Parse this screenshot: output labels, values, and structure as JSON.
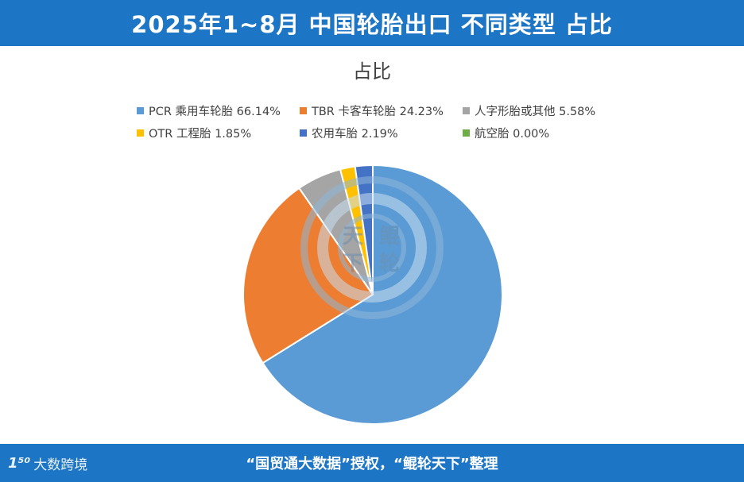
{
  "header": {
    "title": "2025年1~8月 中国轮胎出口 不同类型 占比"
  },
  "chart_data": {
    "type": "pie",
    "title": "占比",
    "legend_position": "top",
    "slices": [
      {
        "label": "PCR 乘用车轮胎 66.14%",
        "name": "PCR 乘用车轮胎",
        "value": 66.14,
        "color": "#5b9bd5"
      },
      {
        "label": "TBR 卡客车轮胎 24.23%",
        "name": "TBR 卡客车轮胎",
        "value": 24.23,
        "color": "#ed7d31"
      },
      {
        "label": "人字形胎或其他 5.58%",
        "name": "人字形胎或其他",
        "value": 5.58,
        "color": "#a5a5a5"
      },
      {
        "label": "OTR 工程胎 1.85%",
        "name": "OTR 工程胎",
        "value": 1.85,
        "color": "#ffc000"
      },
      {
        "label": "农用车胎 2.19%",
        "name": "农用车胎",
        "value": 2.19,
        "color": "#4472c4"
      },
      {
        "label": "航空胎 0.00%",
        "name": "航空胎",
        "value": 0.0,
        "color": "#70ad47"
      }
    ]
  },
  "watermark": {
    "text": "天 鲲 下 轮",
    "chars": [
      "天",
      "鲲",
      "下",
      "轮"
    ]
  },
  "footer": {
    "credit": "“国贸通大数据”授权，“鲲轮天下”整理",
    "logo_mark": "1⁵⁰",
    "logo_text": "大数跨境"
  }
}
